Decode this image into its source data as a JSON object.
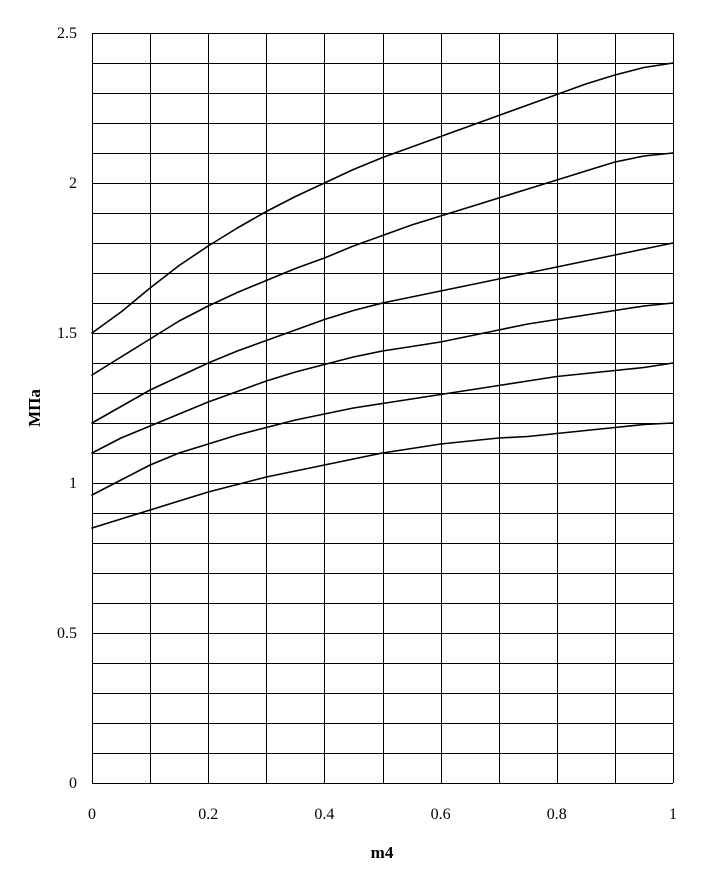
{
  "chart_data": {
    "type": "line",
    "title": "",
    "xlabel": "m4",
    "ylabel": "МПа",
    "xlim": [
      0,
      1
    ],
    "ylim": [
      0,
      2.5
    ],
    "x_ticks": [
      0,
      0.2,
      0.4,
      0.6,
      0.8,
      1
    ],
    "x_tick_labels": [
      "0",
      "0.2",
      "0.4",
      "0.6",
      "0.8",
      "1"
    ],
    "y_ticks": [
      0,
      0.5,
      1,
      1.5,
      2,
      2.5
    ],
    "y_tick_labels": [
      "0",
      "0.5",
      "1",
      "1.5",
      "2",
      "2.5"
    ],
    "x_minor_step": 0.1,
    "y_minor_step": 0.1,
    "grid": true,
    "legend": "none",
    "line_color": "#000000",
    "x": [
      0,
      0.05,
      0.1,
      0.15,
      0.2,
      0.25,
      0.3,
      0.35,
      0.4,
      0.45,
      0.5,
      0.55,
      0.6,
      0.65,
      0.7,
      0.75,
      0.8,
      0.85,
      0.9,
      0.95,
      1.0
    ],
    "series": [
      {
        "values": [
          0.85,
          0.88,
          0.91,
          0.94,
          0.97,
          0.995,
          1.02,
          1.04,
          1.06,
          1.08,
          1.1,
          1.115,
          1.13,
          1.14,
          1.15,
          1.155,
          1.165,
          1.175,
          1.185,
          1.195,
          1.2
        ]
      },
      {
        "values": [
          0.96,
          1.01,
          1.06,
          1.1,
          1.13,
          1.16,
          1.185,
          1.21,
          1.23,
          1.25,
          1.265,
          1.28,
          1.295,
          1.31,
          1.325,
          1.34,
          1.355,
          1.365,
          1.375,
          1.385,
          1.4
        ]
      },
      {
        "values": [
          1.1,
          1.15,
          1.19,
          1.23,
          1.27,
          1.305,
          1.34,
          1.37,
          1.395,
          1.42,
          1.44,
          1.455,
          1.47,
          1.49,
          1.51,
          1.53,
          1.545,
          1.56,
          1.575,
          1.59,
          1.6
        ]
      },
      {
        "values": [
          1.2,
          1.255,
          1.31,
          1.355,
          1.4,
          1.44,
          1.475,
          1.51,
          1.545,
          1.575,
          1.6,
          1.62,
          1.64,
          1.66,
          1.68,
          1.7,
          1.72,
          1.74,
          1.76,
          1.78,
          1.8
        ]
      },
      {
        "values": [
          1.36,
          1.42,
          1.48,
          1.54,
          1.59,
          1.635,
          1.675,
          1.715,
          1.75,
          1.79,
          1.825,
          1.86,
          1.89,
          1.92,
          1.95,
          1.98,
          2.01,
          2.04,
          2.07,
          2.09,
          2.1
        ]
      },
      {
        "values": [
          1.5,
          1.57,
          1.65,
          1.725,
          1.79,
          1.85,
          1.905,
          1.955,
          2.0,
          2.045,
          2.085,
          2.12,
          2.155,
          2.19,
          2.225,
          2.26,
          2.295,
          2.33,
          2.36,
          2.385,
          2.4
        ]
      }
    ]
  }
}
